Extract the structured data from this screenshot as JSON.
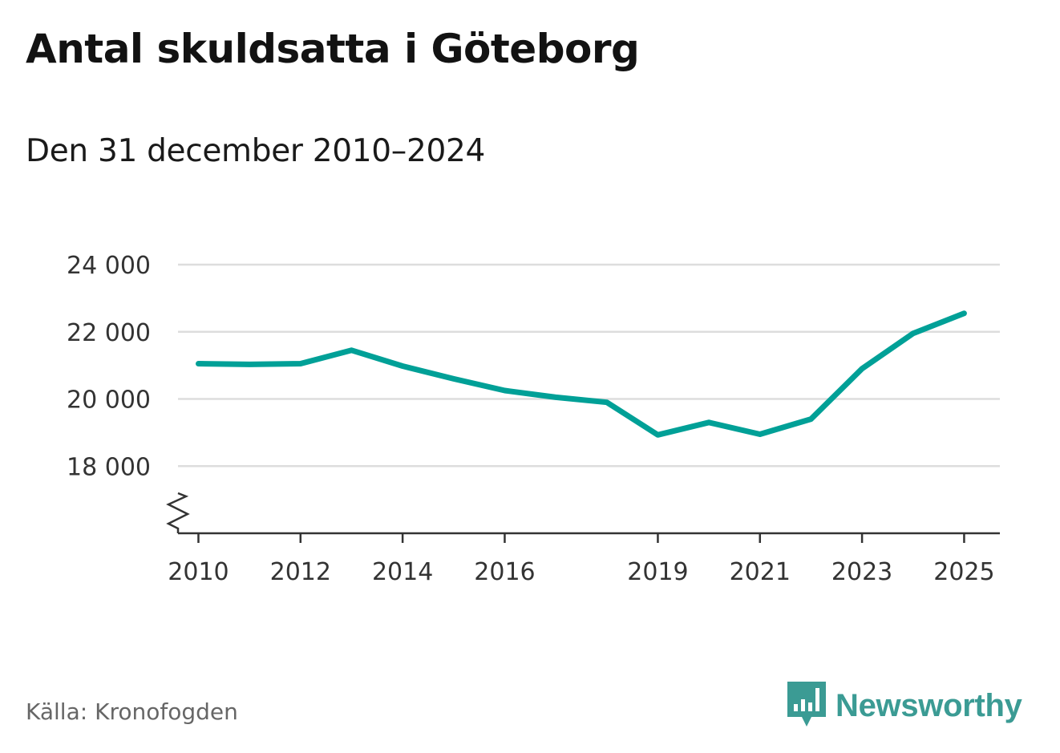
{
  "title": "Antal skuldsatta i Göteborg",
  "subtitle": "Den 31 december 2010–2024",
  "source": "Källa: Kronofogden",
  "brand": {
    "name": "Newsworthy",
    "logo_icon": "bar-chart-speech-bubble-icon",
    "color": "#3b9b94"
  },
  "chart_data": {
    "type": "line",
    "title": "Antal skuldsatta i Göteborg",
    "subtitle": "Den 31 december 2010–2024",
    "xlabel": "",
    "ylabel": "",
    "xlim": [
      2009.6,
      2025.7
    ],
    "ylim": [
      16000,
      24000
    ],
    "axis_break": true,
    "grid": true,
    "x_ticks": [
      2010,
      2012,
      2014,
      2016,
      2019,
      2021,
      2023,
      2025
    ],
    "x_tick_labels": [
      "2010",
      "2012",
      "2014",
      "2016",
      "2019",
      "2021",
      "2023",
      "2025"
    ],
    "y_ticks": [
      18000,
      20000,
      22000,
      24000
    ],
    "y_tick_labels": [
      "18 000",
      "20 000",
      "22 000",
      "24 000"
    ],
    "series": [
      {
        "name": "Antal skuldsatta",
        "color": "#00a097",
        "x": [
          2010,
          2011,
          2012,
          2013,
          2014,
          2015,
          2016,
          2017,
          2018,
          2019,
          2020,
          2021,
          2022,
          2023,
          2024,
          2025
        ],
        "values": [
          21050,
          21030,
          21050,
          21450,
          20980,
          20600,
          20250,
          20050,
          19900,
          18930,
          19300,
          18950,
          19400,
          20900,
          21950,
          22550
        ]
      }
    ]
  }
}
